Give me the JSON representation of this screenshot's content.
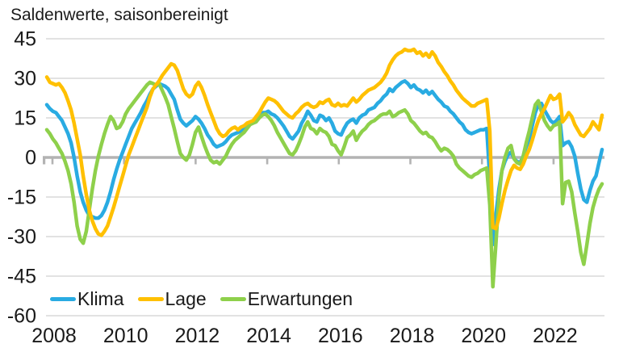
{
  "title": "Saldenwerte, saisonbereinigt",
  "chart_data": {
    "type": "line",
    "title": "Saldenwerte, saisonbereinigt",
    "x_unit": "month",
    "x_range": [
      "2008-01",
      "2023-04"
    ],
    "x_tick_labels": [
      "2008",
      "2010",
      "2012",
      "2014",
      "2016",
      "2018",
      "2020",
      "2022"
    ],
    "y_ticks": [
      45,
      30,
      15,
      0,
      -15,
      -30,
      -45,
      -60
    ],
    "ylim": [
      -60,
      45
    ],
    "grid": "horizontal-light-gray, thicker zero line with small year ticks",
    "legend_position": "bottom-left-inside",
    "axis_color": "#1a1a1a",
    "gridline_color": "#d9d9d9",
    "zeroline_color": "#b3b3b3",
    "series": [
      {
        "name": "Klima",
        "color": "#29ABE2",
        "values": [
          20,
          18.5,
          17.5,
          17,
          15.5,
          14,
          11.5,
          9,
          5.5,
          0,
          -7,
          -13,
          -17,
          -20,
          -22,
          -22.5,
          -23,
          -23,
          -22,
          -20,
          -17,
          -13,
          -8.5,
          -4.5,
          -1,
          2,
          5,
          8,
          11,
          13,
          15,
          17,
          19.5,
          21.5,
          24,
          26,
          27,
          28,
          27.5,
          27,
          26,
          24,
          22,
          18,
          14.5,
          13,
          12,
          13,
          14,
          15.5,
          14.5,
          13,
          11,
          8.5,
          7,
          5,
          4,
          4.5,
          5,
          6,
          7.5,
          8.5,
          9,
          9.5,
          10,
          11,
          12,
          13,
          13.5,
          14.5,
          16,
          17,
          17,
          17.5,
          16.5,
          16,
          15,
          13.5,
          12,
          10,
          8,
          7,
          8.5,
          10,
          13,
          15,
          17.5,
          16,
          14,
          13.5,
          16,
          15.5,
          14,
          15,
          13,
          10,
          9,
          8.5,
          11,
          13,
          14,
          14.5,
          13,
          15,
          16,
          16.5,
          18,
          18.5,
          19,
          20.5,
          21.5,
          23,
          24,
          26,
          25,
          26.5,
          27.5,
          28.5,
          29,
          28,
          26.5,
          27.5,
          26,
          25.5,
          24.5,
          25.5,
          24,
          25,
          23.5,
          22,
          21,
          19.5,
          19,
          17.5,
          16.5,
          15,
          13.5,
          12.5,
          10.5,
          9.5,
          9,
          9.5,
          10,
          10.5,
          10.5,
          11,
          -8,
          -33,
          -22,
          -12,
          -5,
          -1.5,
          1,
          2,
          -0.5,
          -1.5,
          -2,
          0.5,
          4,
          7,
          12,
          17,
          20,
          20.5,
          18,
          16,
          14,
          13,
          14,
          15.5,
          4.5,
          5.5,
          6,
          4,
          0.5,
          -6,
          -12,
          -16,
          -17,
          -12.5,
          -9,
          -7,
          -2,
          3
        ]
      },
      {
        "name": "Lage",
        "color": "#FFC000",
        "values": [
          30.5,
          28.5,
          28,
          27.5,
          28,
          26.5,
          24.5,
          21.5,
          18,
          13,
          7,
          1,
          -7,
          -14,
          -20,
          -24,
          -27,
          -29,
          -29.5,
          -28,
          -26,
          -22.5,
          -19,
          -15,
          -11,
          -7,
          -3,
          1,
          4,
          7,
          10,
          13,
          16,
          19,
          23,
          26,
          27.5,
          29,
          31,
          32.5,
          34,
          35.5,
          35,
          33,
          29.5,
          26,
          24,
          23,
          24,
          27,
          28.5,
          26.5,
          23.5,
          20,
          17,
          14,
          11,
          9,
          8,
          8.5,
          10,
          11,
          11.5,
          10.5,
          11.5,
          12,
          13,
          13.5,
          14,
          15.5,
          17,
          19,
          21,
          22.5,
          22,
          21.5,
          20.5,
          19,
          17.5,
          16.5,
          15.5,
          15,
          16.5,
          17.5,
          19,
          20,
          20.5,
          19.5,
          19,
          19.5,
          21,
          20.5,
          21.5,
          22,
          20,
          19.5,
          20.5,
          19.5,
          20,
          19.5,
          21,
          22.5,
          21,
          22,
          23.5,
          24.5,
          25.5,
          26,
          26.5,
          27.5,
          28.5,
          30,
          32,
          35,
          37,
          38.5,
          39.5,
          40,
          41,
          40.5,
          40.5,
          41,
          39.5,
          40,
          38.5,
          39.5,
          38,
          40,
          38.5,
          36,
          34.5,
          32.5,
          31,
          29,
          27.5,
          25.5,
          24,
          22.5,
          21.5,
          20.5,
          19.5,
          19.5,
          20.5,
          21,
          21.5,
          22,
          10,
          -26.5,
          -27,
          -23,
          -17.5,
          -12.5,
          -8.5,
          -5,
          -3,
          -4,
          -4.5,
          -2.5,
          0.5,
          3,
          6.5,
          10.5,
          14,
          16.5,
          18.5,
          21,
          23.5,
          22,
          22.5,
          24,
          13.5,
          15,
          17,
          15.5,
          12.5,
          10.5,
          8.5,
          8,
          9.5,
          11,
          13.5,
          12,
          10.5,
          16
        ]
      },
      {
        "name": "Erwartungen",
        "color": "#8ED04B",
        "values": [
          10.5,
          9,
          7,
          5.5,
          3.5,
          1.5,
          -1.5,
          -5,
          -10,
          -17,
          -26,
          -31,
          -32.5,
          -28,
          -20,
          -12,
          -5,
          0.5,
          5,
          9,
          12.5,
          15.5,
          14,
          11,
          11.5,
          13.5,
          16.5,
          18.5,
          20,
          21.5,
          23,
          24.5,
          26,
          27.5,
          28.5,
          28,
          27.5,
          28,
          25.5,
          23,
          20,
          15.5,
          11,
          6,
          1.5,
          0,
          -1,
          1,
          5,
          9.5,
          11.5,
          8,
          4.5,
          1.5,
          -1,
          -2,
          -1.5,
          -2.5,
          -1,
          0.5,
          3,
          5,
          6.5,
          7.5,
          8.5,
          9.5,
          11,
          12.5,
          13,
          13.5,
          15,
          16,
          16.5,
          15.5,
          14,
          12,
          9.5,
          7.5,
          5.5,
          3.5,
          1.5,
          1,
          2.5,
          5,
          8,
          11.5,
          13.5,
          11,
          10.5,
          9,
          11,
          10,
          9.5,
          8,
          5,
          4.5,
          2.5,
          1,
          4,
          7.5,
          8.5,
          10,
          6.5,
          8.5,
          10,
          11,
          12.5,
          13.5,
          14,
          15,
          16,
          16.5,
          16.5,
          17.5,
          15.5,
          16,
          17,
          17.5,
          18,
          16.5,
          14,
          13,
          11.5,
          10,
          9,
          9.5,
          8,
          7.5,
          6,
          4,
          2.5,
          3.5,
          3,
          2,
          0.5,
          -2.5,
          -4,
          -5,
          -6,
          -7,
          -7.5,
          -6.5,
          -6,
          -5,
          -4.5,
          -4,
          -18,
          -49,
          -33,
          -15,
          -5,
          0,
          3.5,
          4.5,
          -0.5,
          -2,
          -2.5,
          0.5,
          5.5,
          10,
          15,
          20,
          21.5,
          17.5,
          14,
          12,
          10.5,
          12,
          12.5,
          13.5,
          -17.5,
          -9.5,
          -9,
          -13,
          -21,
          -28,
          -36,
          -40.5,
          -33,
          -25,
          -19,
          -15,
          -12,
          -10
        ]
      }
    ]
  }
}
